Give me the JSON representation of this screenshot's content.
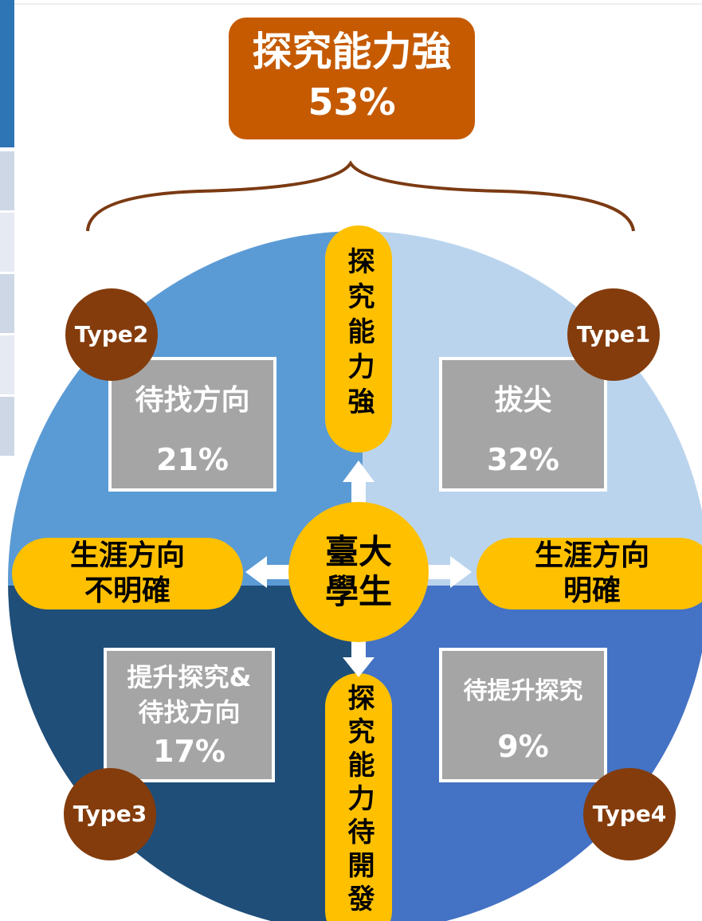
{
  "header": {
    "title": "探究能力強",
    "value": "53%"
  },
  "center": {
    "lines": [
      "臺大",
      "學生"
    ]
  },
  "axes": {
    "top": "探究能力強",
    "bottom": "探究能力待開發",
    "left": [
      "生涯方向",
      "不明確"
    ],
    "right": [
      "生涯方向",
      "明確"
    ]
  },
  "quadrants": [
    {
      "type": "Type1",
      "label": [
        "拔尖"
      ],
      "value": "32%"
    },
    {
      "type": "Type2",
      "label": [
        "待找方向"
      ],
      "value": "21%"
    },
    {
      "type": "Type3",
      "label": [
        "提升探究&",
        "待找方向"
      ],
      "value": "17%"
    },
    {
      "type": "Type4",
      "label": [
        "待提升探究"
      ],
      "value": "9%"
    }
  ]
}
